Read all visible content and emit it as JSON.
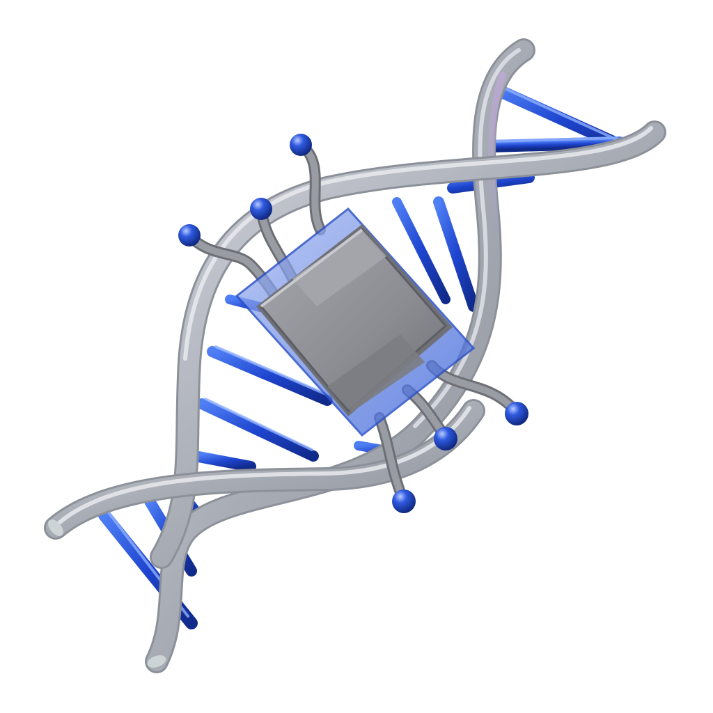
{
  "scene": {
    "subject": "dna-helix-with-microchip",
    "icons": [
      "dna-helix-icon",
      "microchip-icon"
    ],
    "colors": {
      "background": "#ffffff",
      "backbone": "#a9adb6",
      "backbone_highlight": "#e6e8ee",
      "backbone_tint": "#b59ad8",
      "rung": "#1f48d6",
      "rung_highlight": "#7fa6ff",
      "chip_body": "#8a8c92",
      "chip_top": "#9c9ea4",
      "chip_glass": "#6f8ee8",
      "pin": "#7e8087",
      "pin_ball": "#1c46c8"
    }
  }
}
